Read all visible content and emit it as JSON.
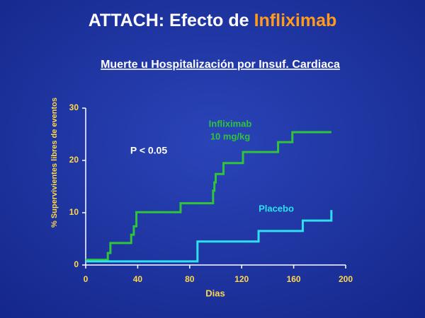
{
  "chart_data": {
    "type": "step-line",
    "title_parts": [
      "ATTACH: Efecto de",
      "Infliximab"
    ],
    "subtitle": "Muerte u Hospitalización por Insuf. Cardiaca",
    "y_label": "% Supervivientes libres de eventos",
    "x_label": "Dias",
    "annotation": "P < 0.05",
    "xlim": [
      0,
      200
    ],
    "xticks": [
      0,
      40,
      80,
      120,
      160,
      200
    ],
    "ylim": [
      0,
      30
    ],
    "yticks": [
      0,
      10,
      20,
      30
    ],
    "series": [
      {
        "name": "Infliximab",
        "dose": "10 mg/kg",
        "color": "#2fc43a",
        "x": [
          0,
          17,
          19,
          35,
          37,
          39,
          73,
          98,
          99,
          100,
          106,
          121,
          148,
          159,
          189
        ],
        "values": [
          1,
          2.3,
          4.2,
          5.8,
          7.4,
          10.1,
          11.8,
          14.2,
          15.8,
          17.4,
          19.5,
          21.6,
          23.5,
          25.4,
          25.4
        ]
      },
      {
        "name": "Placebo",
        "color": "#2ee0f0",
        "x": [
          0,
          86,
          133,
          167,
          189
        ],
        "values": [
          0.7,
          4.5,
          6.5,
          8.5,
          10.5
        ]
      }
    ]
  }
}
